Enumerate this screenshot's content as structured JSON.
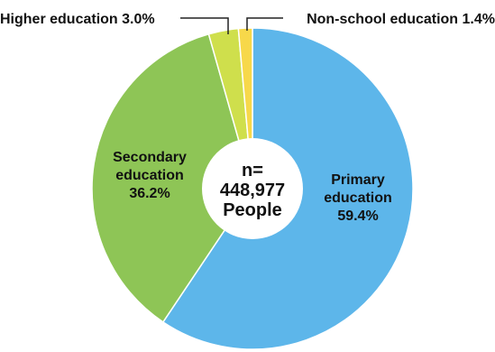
{
  "chart_data": {
    "type": "pie",
    "style": "donut",
    "center_label": [
      "n=",
      "448,977",
      "People"
    ],
    "slices": [
      {
        "label_lines": [
          "Primary",
          "education"
        ],
        "value_text": "59.4%",
        "value": 59.4,
        "color": "#5db6ea"
      },
      {
        "label_lines": [
          "Secondary",
          "education"
        ],
        "value_text": "36.2%",
        "value": 36.2,
        "color": "#8ec556"
      },
      {
        "label_lines": [
          "Higher education 3.0%"
        ],
        "value_text": "",
        "value": 3.0,
        "color": "#cfdf4c"
      },
      {
        "label_lines": [
          "Non-school education 1.4%"
        ],
        "value_text": "",
        "value": 1.4,
        "color": "#f7d84a"
      }
    ],
    "slice_border_color": "#ffffff"
  }
}
